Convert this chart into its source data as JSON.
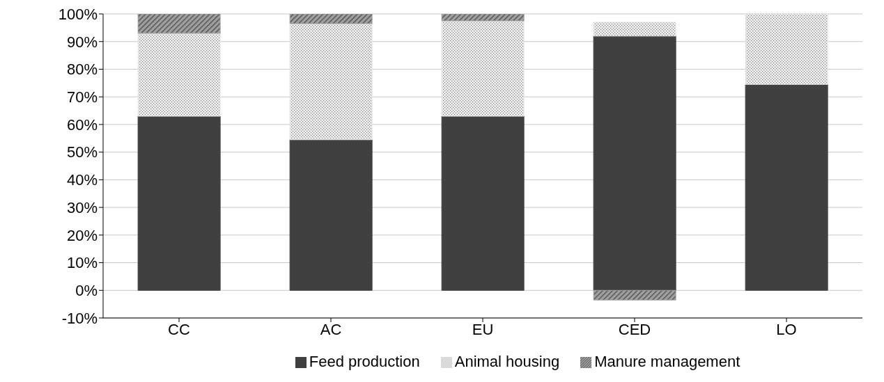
{
  "chart_data": {
    "type": "bar",
    "stacked": true,
    "categories": [
      "CC",
      "AC",
      "EU",
      "CED",
      "LO"
    ],
    "series": [
      {
        "name": "Feed production",
        "color": "#404040",
        "values": [
          63,
          54.5,
          63,
          92,
          74.5
        ]
      },
      {
        "name": "Animal housing",
        "color": "#e8e8e8",
        "values": [
          30,
          42,
          34.5,
          5,
          25.5
        ]
      },
      {
        "name": "Manure management",
        "color": "#a0a0a0",
        "values": [
          7,
          3.5,
          2.5,
          -3.5,
          0
        ]
      }
    ],
    "ylim": [
      -10,
      100
    ],
    "yticks": [
      {
        "value": -10,
        "label": "-10%"
      },
      {
        "value": 0,
        "label": "0%"
      },
      {
        "value": 10,
        "label": "10%"
      },
      {
        "value": 20,
        "label": "20%"
      },
      {
        "value": 30,
        "label": "30%"
      },
      {
        "value": 40,
        "label": "40%"
      },
      {
        "value": 50,
        "label": "50%"
      },
      {
        "value": 60,
        "label": "60%"
      },
      {
        "value": 70,
        "label": "70%"
      },
      {
        "value": 80,
        "label": "80%"
      },
      {
        "value": 90,
        "label": "90%"
      },
      {
        "value": 100,
        "label": "100%"
      }
    ],
    "grid": "y",
    "legend": "bottom"
  }
}
